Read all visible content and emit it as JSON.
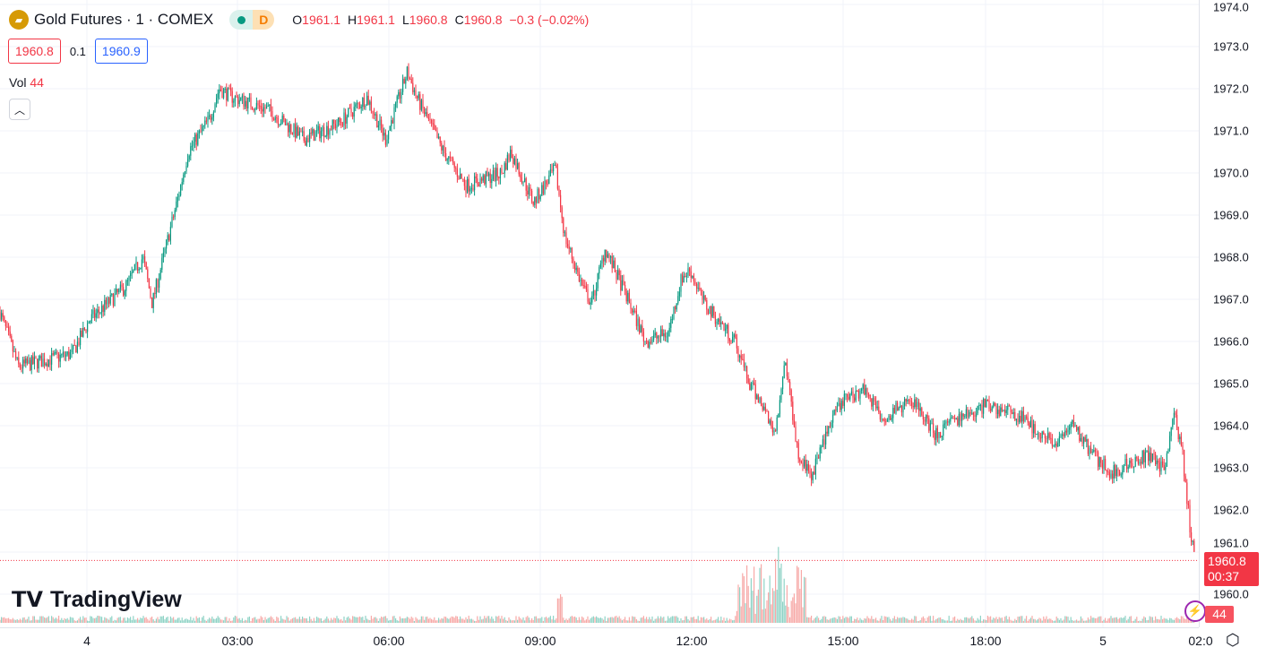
{
  "header": {
    "symbol": "Gold Futures · 1 · COMEX",
    "logo_icon": "gold-bars-icon",
    "status_icon": "market-open-dot-icon",
    "badge": "D",
    "open_label": "O",
    "open": "1961.1",
    "high_label": "H",
    "high": "1961.1",
    "low_label": "L",
    "low": "1960.8",
    "close_label": "C",
    "close": "1960.8",
    "change": "−0.3 (−0.02%)"
  },
  "quote": {
    "bid": "1960.8",
    "spread": "0.1",
    "ask": "1960.9"
  },
  "volume": {
    "label": "Vol",
    "value": "44"
  },
  "collapse_icon": "chevron-up-icon",
  "watermark": "TradingView",
  "last_price": {
    "price": "1960.8",
    "countdown": "00:37",
    "volume": "44"
  },
  "colors": {
    "up": "#089981",
    "down": "#f23645",
    "up_vol": "#8fd3c6",
    "down_vol": "#f7a9a7"
  },
  "chart_data": {
    "type": "candlestick",
    "interval": "1 minute",
    "ylim": [
      1959.9,
      1974.0
    ],
    "y_ticks": [
      "1960.0",
      "1961.0",
      "1962.0",
      "1963.0",
      "1964.0",
      "1965.0",
      "1966.0",
      "1967.0",
      "1968.0",
      "1969.0",
      "1970.0",
      "1971.0",
      "1972.0",
      "1973.0",
      "1974.0"
    ],
    "x_ticks": [
      "4",
      "03:00",
      "06:00",
      "09:00",
      "12:00",
      "15:00",
      "18:00",
      "5",
      "02:0"
    ],
    "grid": true,
    "approx_close_path": [
      [
        "03 22:16",
        1966.7
      ],
      [
        "03 22:38",
        1965.4
      ],
      [
        "03 23:42",
        1965.7
      ],
      [
        "04 00:03",
        1966.5
      ],
      [
        "04 00:46",
        1967.3
      ],
      [
        "04 01:07",
        1968.0
      ],
      [
        "04 01:18",
        1966.9
      ],
      [
        "04 01:50",
        1969.5
      ],
      [
        "04 02:01",
        1970.5
      ],
      [
        "04 02:27",
        1971.3
      ],
      [
        "04 02:38",
        1972.0
      ],
      [
        "04 02:54",
        1971.8
      ],
      [
        "04 03:37",
        1971.5
      ],
      [
        "04 04:19",
        1970.8
      ],
      [
        "04 05:02",
        1971.2
      ],
      [
        "04 05:34",
        1971.8
      ],
      [
        "04 05:56",
        1970.8
      ],
      [
        "04 06:22",
        1972.4
      ],
      [
        "04 06:33",
        1971.8
      ],
      [
        "04 07:05",
        1970.5
      ],
      [
        "04 07:32",
        1969.7
      ],
      [
        "04 08:14",
        1970.0
      ],
      [
        "04 08:25",
        1970.5
      ],
      [
        "04 08:52",
        1969.3
      ],
      [
        "04 09:18",
        1970.1
      ],
      [
        "04 09:29",
        1968.5
      ],
      [
        "04 09:50",
        1967.3
      ],
      [
        "04 10:01",
        1966.9
      ],
      [
        "04 10:17",
        1968.2
      ],
      [
        "04 10:44",
        1967.0
      ],
      [
        "04 11:05",
        1966.0
      ],
      [
        "04 11:32",
        1966.2
      ],
      [
        "04 11:48",
        1967.5
      ],
      [
        "04 11:58",
        1967.7
      ],
      [
        "04 12:15",
        1966.9
      ],
      [
        "04 12:52",
        1966.0
      ],
      [
        "04 13:08",
        1965.0
      ],
      [
        "04 13:24",
        1964.5
      ],
      [
        "04 13:40",
        1963.8
      ],
      [
        "04 13:51",
        1965.6
      ],
      [
        "04 14:07",
        1963.3
      ],
      [
        "04 14:23",
        1962.8
      ],
      [
        "04 14:39",
        1963.8
      ],
      [
        "04 15:00",
        1964.6
      ],
      [
        "04 15:27",
        1964.9
      ],
      [
        "04 15:50",
        1964.2
      ],
      [
        "04 16:29",
        1964.6
      ],
      [
        "04 16:55",
        1963.8
      ],
      [
        "04 18:00",
        1964.5
      ],
      [
        "04 19:50",
        1964.2
      ],
      [
        "04 21:40",
        1963.5
      ],
      [
        "04 22:21",
        1964.1
      ],
      [
        "04 23:30",
        1963.3
      ],
      [
        "05 00:10",
        1962.9
      ],
      [
        "05 00:54",
        1963.3
      ],
      [
        "05 01:16",
        1963.0
      ],
      [
        "05 01:27",
        1964.3
      ],
      [
        "05 01:38",
        1963.3
      ],
      [
        "05 01:49",
        1961.2
      ],
      [
        "05 01:54",
        1960.8
      ]
    ]
  }
}
